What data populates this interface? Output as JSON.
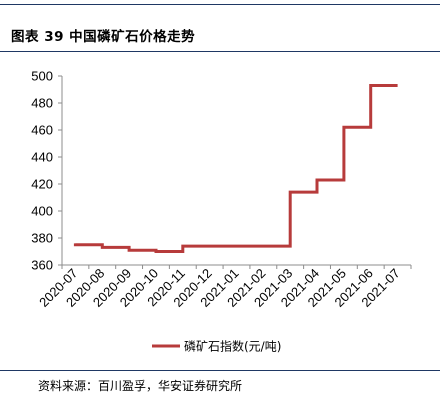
{
  "figure": {
    "title": "图表 39 中国磷矿石价格走势",
    "source_note": "资料来源：百川盈孚，华安证券研究所"
  },
  "colors": {
    "series": "#b73b3b",
    "axis": "#8c8c8c",
    "header_rule": "#1f3864"
  },
  "chart_data": {
    "type": "line",
    "step": true,
    "title": "",
    "xlabel": "",
    "ylabel": "",
    "x": [
      "2020-07",
      "2020-08",
      "2020-09",
      "2020-10",
      "2020-11",
      "2020-12",
      "2021-01",
      "2021-02",
      "2021-03",
      "2021-04",
      "2021-05",
      "2021-06",
      "2021-07"
    ],
    "ylim": [
      360,
      500
    ],
    "yticks": [
      360,
      380,
      400,
      420,
      440,
      460,
      480,
      500
    ],
    "grid": false,
    "legend": "bottom-center",
    "series": [
      {
        "name": "磷矿石指数(元/吨)",
        "points": [
          {
            "x": "2020-07",
            "y": 376
          },
          {
            "x": "2020-07",
            "y": 375
          },
          {
            "x": "2020-08",
            "y": 375
          },
          {
            "x": "2020-08",
            "y": 373
          },
          {
            "x": "2020-09",
            "y": 373
          },
          {
            "x": "2020-09",
            "y": 371
          },
          {
            "x": "2020-10",
            "y": 371
          },
          {
            "x": "2020-10",
            "y": 370
          },
          {
            "x": "2020-11",
            "y": 370
          },
          {
            "x": "2020-11",
            "y": 374
          },
          {
            "x": "2021-03",
            "y": 374
          },
          {
            "x": "2021-03",
            "y": 414
          },
          {
            "x": "2021-04",
            "y": 414
          },
          {
            "x": "2021-04",
            "y": 423
          },
          {
            "x": "2021-05",
            "y": 423
          },
          {
            "x": "2021-05",
            "y": 462
          },
          {
            "x": "2021-06",
            "y": 462
          },
          {
            "x": "2021-06",
            "y": 493
          },
          {
            "x": "2021-07",
            "y": 493
          }
        ]
      }
    ]
  }
}
